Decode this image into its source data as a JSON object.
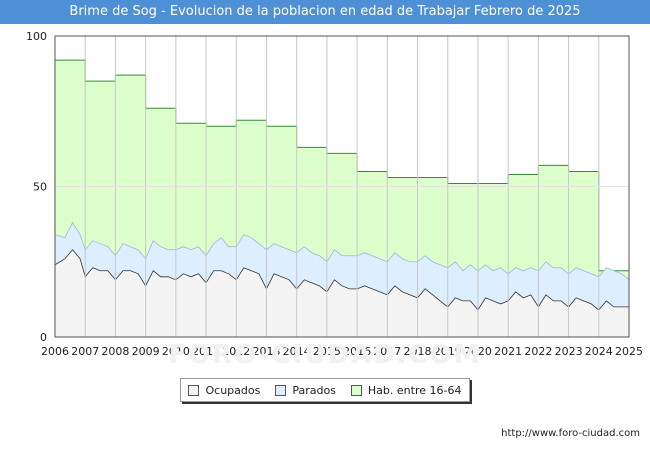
{
  "header": {
    "title": "Brime de Sog - Evolucion de la poblacion en edad de Trabajar Febrero de 2025"
  },
  "footer": {
    "url": "http://www.foro-ciudad.com"
  },
  "watermark": {
    "text": "FORO-CIUDAD.COM"
  },
  "chart_data": {
    "type": "area",
    "title": "Brime de Sog - Evolucion de la poblacion en edad de Trabajar Febrero de 2025",
    "xlabel": "",
    "ylabel": "",
    "x_ticks": [
      "2006",
      "2007",
      "2008",
      "2009",
      "2010",
      "2011",
      "2012",
      "2013",
      "2014",
      "2015",
      "2016",
      "2017",
      "2018",
      "2019",
      "2020",
      "2021",
      "2022",
      "2023",
      "2024",
      "2025"
    ],
    "y_ticks": [
      0,
      50,
      100
    ],
    "xlim": [
      2006,
      2025
    ],
    "ylim": [
      0,
      100
    ],
    "grid": true,
    "legend_position": "bottom",
    "colors": {
      "ocupados": "#f4f4f4",
      "parados": "#ddeeff",
      "hab": "#ddffcc",
      "hab_line": "#3a8a3a",
      "line": "#333333",
      "grid": "#c8c8c8"
    },
    "series": [
      {
        "name": "Hab. entre 16-64",
        "key": "hab",
        "type": "step",
        "x": [
          2006,
          2007,
          2008,
          2009,
          2010,
          2011,
          2012,
          2013,
          2014,
          2015,
          2016,
          2017,
          2018,
          2019,
          2020,
          2021,
          2022,
          2023,
          2024,
          2025
        ],
        "values": [
          92,
          85,
          87,
          76,
          71,
          70,
          72,
          70,
          63,
          61,
          55,
          53,
          53,
          51,
          51,
          54,
          57,
          55,
          22,
          22
        ]
      },
      {
        "name": "Parados",
        "key": "parados",
        "type": "line",
        "x": [
          2006.0,
          2006.33,
          2006.58,
          2006.83,
          2007.0,
          2007.25,
          2007.5,
          2007.75,
          2008.0,
          2008.25,
          2008.5,
          2008.75,
          2009.0,
          2009.25,
          2009.5,
          2009.75,
          2010.0,
          2010.25,
          2010.5,
          2010.75,
          2011.0,
          2011.25,
          2011.5,
          2011.75,
          2012.0,
          2012.25,
          2012.5,
          2012.75,
          2013.0,
          2013.25,
          2013.5,
          2013.75,
          2014.0,
          2014.25,
          2014.5,
          2014.75,
          2015.0,
          2015.25,
          2015.5,
          2015.75,
          2016.0,
          2016.25,
          2016.5,
          2016.75,
          2017.0,
          2017.25,
          2017.5,
          2017.75,
          2018.0,
          2018.25,
          2018.5,
          2018.75,
          2019.0,
          2019.25,
          2019.5,
          2019.75,
          2020.0,
          2020.25,
          2020.5,
          2020.75,
          2021.0,
          2021.25,
          2021.5,
          2021.75,
          2022.0,
          2022.25,
          2022.5,
          2022.75,
          2023.0,
          2023.25,
          2023.5,
          2023.75,
          2024.0,
          2024.25,
          2024.5,
          2024.75,
          2025.0
        ],
        "values": [
          34,
          33,
          38,
          34,
          29,
          32,
          31,
          30,
          27,
          31,
          30,
          29,
          26,
          32,
          30,
          29,
          29,
          30,
          29,
          30,
          27,
          31,
          33,
          30,
          30,
          34,
          33,
          31,
          29,
          31,
          30,
          29,
          28,
          30,
          28,
          27,
          25,
          29,
          27,
          27,
          27,
          28,
          27,
          26,
          25,
          28,
          26,
          25,
          25,
          27,
          25,
          24,
          23,
          25,
          22,
          24,
          22,
          24,
          22,
          23,
          21,
          23,
          22,
          23,
          22,
          25,
          23,
          23,
          21,
          23,
          22,
          21,
          20,
          23,
          22,
          21,
          19
        ]
      },
      {
        "name": "Ocupados",
        "key": "ocupados",
        "type": "line",
        "x": [
          2006.0,
          2006.33,
          2006.58,
          2006.83,
          2007.0,
          2007.25,
          2007.5,
          2007.75,
          2008.0,
          2008.25,
          2008.5,
          2008.75,
          2009.0,
          2009.25,
          2009.5,
          2009.75,
          2010.0,
          2010.25,
          2010.5,
          2010.75,
          2011.0,
          2011.25,
          2011.5,
          2011.75,
          2012.0,
          2012.25,
          2012.5,
          2012.75,
          2013.0,
          2013.25,
          2013.5,
          2013.75,
          2014.0,
          2014.25,
          2014.5,
          2014.75,
          2015.0,
          2015.25,
          2015.5,
          2015.75,
          2016.0,
          2016.25,
          2016.5,
          2016.75,
          2017.0,
          2017.25,
          2017.5,
          2017.75,
          2018.0,
          2018.25,
          2018.5,
          2018.75,
          2019.0,
          2019.25,
          2019.5,
          2019.75,
          2020.0,
          2020.25,
          2020.5,
          2020.75,
          2021.0,
          2021.25,
          2021.5,
          2021.75,
          2022.0,
          2022.25,
          2022.5,
          2022.75,
          2023.0,
          2023.25,
          2023.5,
          2023.75,
          2024.0,
          2024.25,
          2024.5,
          2024.75,
          2025.0
        ],
        "values": [
          24,
          26,
          29,
          26,
          20,
          23,
          22,
          22,
          19,
          22,
          22,
          21,
          17,
          22,
          20,
          20,
          19,
          21,
          20,
          21,
          18,
          22,
          22,
          21,
          19,
          23,
          22,
          21,
          16,
          21,
          20,
          19,
          16,
          19,
          18,
          17,
          15,
          19,
          17,
          16,
          16,
          17,
          16,
          15,
          14,
          17,
          15,
          14,
          13,
          16,
          14,
          12,
          10,
          13,
          12,
          12,
          9,
          13,
          12,
          11,
          12,
          15,
          13,
          14,
          10,
          14,
          12,
          12,
          10,
          13,
          12,
          11,
          9,
          12,
          10,
          10,
          10
        ]
      }
    ]
  }
}
